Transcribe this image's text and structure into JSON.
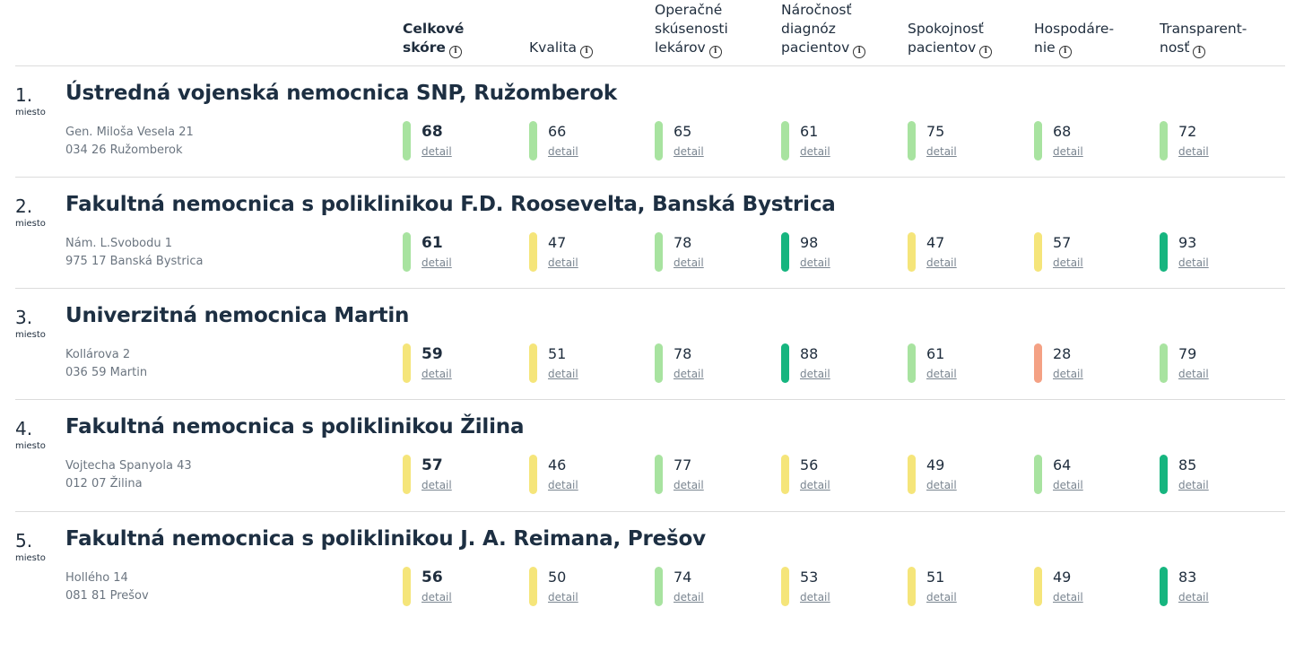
{
  "columns": [
    {
      "label": "Celkové\nskóre",
      "bold": true
    },
    {
      "label": "Kvalita",
      "bold": false
    },
    {
      "label": "Operačné\nskúsenosti\nlekárov",
      "bold": false
    },
    {
      "label": "Náročnosť\ndiagnóz\npacientov",
      "bold": false
    },
    {
      "label": "Spokojnosť\npacientov",
      "bold": false
    },
    {
      "label": "Hospodáre-\nnie",
      "bold": false
    },
    {
      "label": "Transparent-\nnosť",
      "bold": false
    }
  ],
  "info_icon": "i",
  "detail_label": "detail",
  "rank_suffix": "miesto",
  "colors": {
    "light_green": "#a8e3a0",
    "dark_green": "#16b57f",
    "yellow": "#f5e57a",
    "orange": "#f4a184"
  },
  "hospitals": [
    {
      "rank": "1.",
      "name": "Ústredná vojenská nemocnica SNP, Ružomberok",
      "address1": "Gen. Miloša Vesela 21",
      "address2": "034 26 Ružomberok",
      "scores": [
        {
          "value": "68",
          "color": "light_green"
        },
        {
          "value": "66",
          "color": "light_green"
        },
        {
          "value": "65",
          "color": "light_green"
        },
        {
          "value": "61",
          "color": "light_green"
        },
        {
          "value": "75",
          "color": "light_green"
        },
        {
          "value": "68",
          "color": "light_green"
        },
        {
          "value": "72",
          "color": "light_green"
        }
      ]
    },
    {
      "rank": "2.",
      "name": "Fakultná nemocnica s poliklinikou F.D. Roosevelta, Banská Bystrica",
      "address1": "Nám. L.Svobodu 1",
      "address2": "975 17 Banská Bystrica",
      "scores": [
        {
          "value": "61",
          "color": "light_green"
        },
        {
          "value": "47",
          "color": "yellow"
        },
        {
          "value": "78",
          "color": "light_green"
        },
        {
          "value": "98",
          "color": "dark_green"
        },
        {
          "value": "47",
          "color": "yellow"
        },
        {
          "value": "57",
          "color": "yellow"
        },
        {
          "value": "93",
          "color": "dark_green"
        }
      ]
    },
    {
      "rank": "3.",
      "name": "Univerzitná nemocnica Martin",
      "address1": "Kollárova 2",
      "address2": "036 59 Martin",
      "scores": [
        {
          "value": "59",
          "color": "yellow"
        },
        {
          "value": "51",
          "color": "yellow"
        },
        {
          "value": "78",
          "color": "light_green"
        },
        {
          "value": "88",
          "color": "dark_green"
        },
        {
          "value": "61",
          "color": "light_green"
        },
        {
          "value": "28",
          "color": "orange"
        },
        {
          "value": "79",
          "color": "light_green"
        }
      ]
    },
    {
      "rank": "4.",
      "name": "Fakultná nemocnica s poliklinikou Žilina",
      "address1": "Vojtecha Spanyola 43",
      "address2": "012 07 Žilina",
      "scores": [
        {
          "value": "57",
          "color": "yellow"
        },
        {
          "value": "46",
          "color": "yellow"
        },
        {
          "value": "77",
          "color": "light_green"
        },
        {
          "value": "56",
          "color": "yellow"
        },
        {
          "value": "49",
          "color": "yellow"
        },
        {
          "value": "64",
          "color": "light_green"
        },
        {
          "value": "85",
          "color": "dark_green"
        }
      ]
    },
    {
      "rank": "5.",
      "name": "Fakultná nemocnica s poliklinikou J. A. Reimana, Prešov",
      "address1": "Hollého 14",
      "address2": "081 81 Prešov",
      "scores": [
        {
          "value": "56",
          "color": "yellow"
        },
        {
          "value": "50",
          "color": "yellow"
        },
        {
          "value": "74",
          "color": "light_green"
        },
        {
          "value": "53",
          "color": "yellow"
        },
        {
          "value": "51",
          "color": "yellow"
        },
        {
          "value": "49",
          "color": "yellow"
        },
        {
          "value": "83",
          "color": "dark_green"
        }
      ]
    }
  ]
}
